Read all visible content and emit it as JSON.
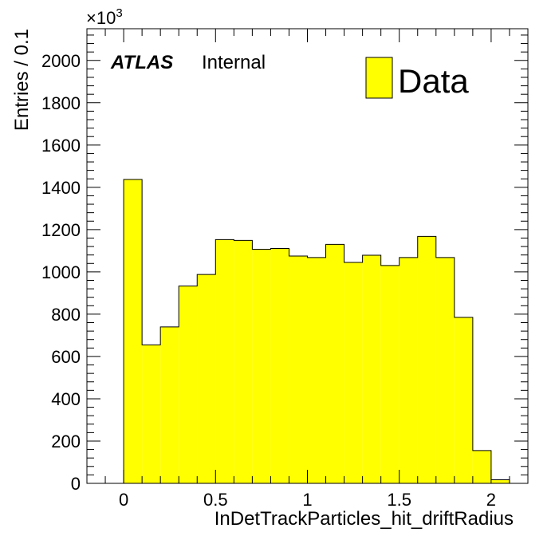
{
  "chart_data": {
    "type": "bar",
    "title": "",
    "xlabel": "InDetTrackParticles_hit_driftRadius",
    "ylabel": "Entries / 0.1",
    "y_multiplier": "×10",
    "y_multiplier_exp": "3",
    "xlim": [
      -0.2,
      2.2
    ],
    "ylim": [
      0,
      2150
    ],
    "x_ticks": [
      0,
      0.5,
      1,
      1.5,
      2
    ],
    "x_tick_labels": [
      "0",
      "0.5",
      "1",
      "1.5",
      "2"
    ],
    "y_ticks": [
      0,
      200,
      400,
      600,
      800,
      1000,
      1200,
      1400,
      1600,
      1800,
      2000
    ],
    "y_tick_labels": [
      "0",
      "200",
      "400",
      "600",
      "800",
      "1000",
      "1200",
      "1400",
      "1600",
      "1800",
      "2000"
    ],
    "bin_width": 0.1,
    "bin_low_edges": [
      0.0,
      0.1,
      0.2,
      0.3,
      0.4,
      0.5,
      0.6,
      0.7,
      0.8,
      0.9,
      1.0,
      1.1,
      1.2,
      1.3,
      1.4,
      1.5,
      1.6,
      1.7,
      1.8,
      1.9,
      2.0
    ],
    "series": [
      {
        "name": "Data",
        "color": "#ffff00",
        "values": [
          1437,
          655,
          740,
          933,
          988,
          1153,
          1149,
          1107,
          1111,
          1075,
          1068,
          1130,
          1045,
          1079,
          1030,
          1068,
          1168,
          1068,
          785,
          155,
          17
        ]
      }
    ],
    "grid": false,
    "legend": "top-right"
  },
  "labels": {
    "experiment": "ATLAS",
    "status": "Internal",
    "legend_entry": "Data"
  }
}
